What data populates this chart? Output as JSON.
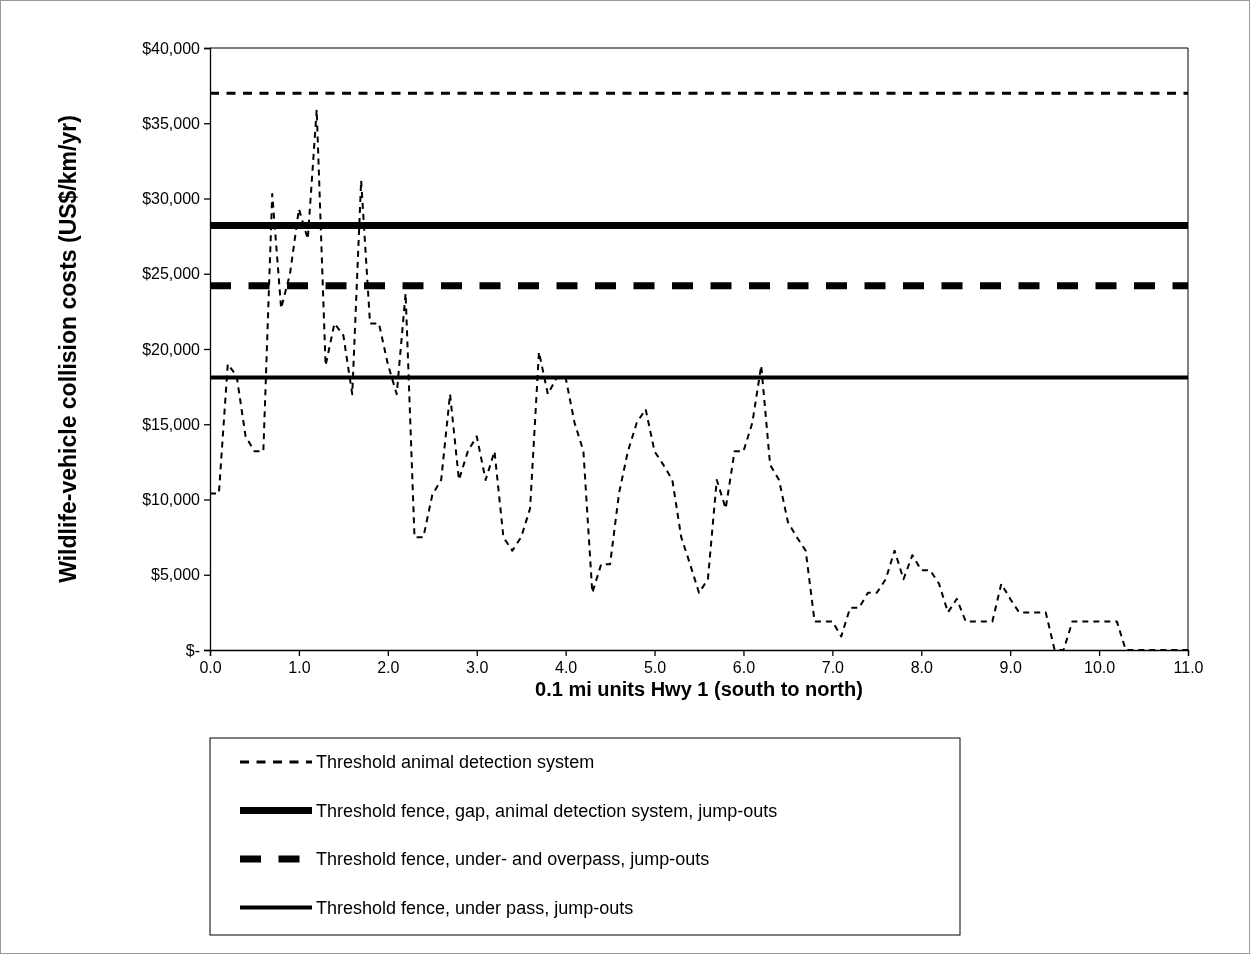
{
  "chart_data": {
    "type": "line",
    "xlabel": "0.1 mi units Hwy 1 (south to north)",
    "ylabel": "Wildlife-vehicle collision costs (US$/km/yr)",
    "x": [
      0.0,
      0.1,
      0.2,
      0.3,
      0.4,
      0.5,
      0.6,
      0.7,
      0.8,
      0.9,
      1.0,
      1.1,
      1.2,
      1.3,
      1.4,
      1.5,
      1.6,
      1.7,
      1.8,
      1.9,
      2.0,
      2.1,
      2.2,
      2.3,
      2.4,
      2.5,
      2.6,
      2.7,
      2.8,
      2.9,
      3.0,
      3.1,
      3.2,
      3.3,
      3.4,
      3.5,
      3.6,
      3.7,
      3.8,
      3.9,
      4.0,
      4.1,
      4.2,
      4.3,
      4.4,
      4.5,
      4.6,
      4.7,
      4.8,
      4.9,
      5.0,
      5.1,
      5.2,
      5.3,
      5.4,
      5.5,
      5.6,
      5.7,
      5.8,
      5.9,
      6.0,
      6.1,
      6.2,
      6.3,
      6.4,
      6.5,
      6.6,
      6.7,
      6.8,
      6.9,
      7.0,
      7.1,
      7.2,
      7.3,
      7.4,
      7.5,
      7.6,
      7.7,
      7.8,
      7.9,
      8.0,
      8.1,
      8.2,
      8.3,
      8.4,
      8.5,
      8.6,
      8.7,
      8.8,
      8.9,
      9.0,
      9.1,
      9.2,
      9.3,
      9.4,
      9.5,
      9.6,
      9.7,
      9.8,
      9.9,
      10.0,
      10.1,
      10.2,
      10.3,
      10.4,
      10.5,
      10.6,
      10.7,
      10.8,
      10.9,
      11.0
    ],
    "series": [
      {
        "color": "#000000",
        "values": [
          10400,
          10400,
          19000,
          18200,
          14200,
          13200,
          13200,
          30300,
          22700,
          25000,
          29300,
          27300,
          35900,
          18900,
          21700,
          20900,
          17000,
          31200,
          21700,
          21700,
          19000,
          17000,
          23700,
          7500,
          7500,
          10300,
          11300,
          17000,
          11300,
          13200,
          14200,
          11300,
          13200,
          7500,
          6600,
          7500,
          9400,
          19800,
          17000,
          18100,
          18100,
          15100,
          13200,
          3800,
          5700,
          5700,
          10400,
          13200,
          15100,
          16000,
          13200,
          12300,
          11300,
          7500,
          5700,
          3800,
          4700,
          11300,
          9400,
          13200,
          13200,
          15100,
          18900,
          12300,
          11300,
          8500,
          7500,
          6600,
          1900,
          1900,
          1900,
          900,
          2800,
          2800,
          3800,
          3800,
          4700,
          6600,
          4700,
          6300,
          5300,
          5300,
          4400,
          2500,
          3400,
          1900,
          1900,
          1900,
          1900,
          4400,
          3400,
          2500,
          2500,
          2500,
          2500,
          0,
          0,
          1900,
          1900,
          1900,
          1900,
          1900,
          1900,
          0,
          0,
          0,
          0,
          0,
          0,
          0,
          0
        ]
      }
    ],
    "xlim": [
      0,
      11
    ],
    "xticks": [
      {
        "value": 0,
        "label": "0.0"
      },
      {
        "value": 1,
        "label": "1.0"
      },
      {
        "value": 2,
        "label": "2.0"
      },
      {
        "value": 3,
        "label": "3.0"
      },
      {
        "value": 4,
        "label": "4.0"
      },
      {
        "value": 5,
        "label": "5.0"
      },
      {
        "value": 6,
        "label": "6.0"
      },
      {
        "value": 7,
        "label": "7.0"
      },
      {
        "value": 8,
        "label": "8.0"
      },
      {
        "value": 9,
        "label": "9.0"
      },
      {
        "value": 10,
        "label": "10.0"
      },
      {
        "value": 11,
        "label": "11.0"
      }
    ],
    "ylim": [
      0,
      40000
    ],
    "yticks": [
      {
        "value": 0,
        "label": "$-"
      },
      {
        "value": 5000,
        "label": "$5,000"
      },
      {
        "value": 10000,
        "label": "$10,000"
      },
      {
        "value": 15000,
        "label": "$15,000"
      },
      {
        "value": 20000,
        "label": "$20,000"
      },
      {
        "value": 25000,
        "label": "$25,000"
      },
      {
        "value": 30000,
        "label": "$30,000"
      },
      {
        "value": 35000,
        "label": "$35,000"
      },
      {
        "value": 40000,
        "label": "$40,000"
      }
    ],
    "ref_lines": [
      {
        "axis": "y",
        "value": 37000,
        "label": "Threshold animal detection system",
        "color": "#000000",
        "line_style": "dashed"
      },
      {
        "axis": "y",
        "value": 28200,
        "label": "Threshold fence, gap, animal detection system, jump-outs",
        "color": "#000000",
        "line_style": "solid"
      },
      {
        "axis": "y",
        "value": 24200,
        "label": "Threshold fence, under- and overpass, jump-outs",
        "color": "#000000",
        "line_style": "dashed"
      },
      {
        "axis": "y",
        "value": 18100,
        "label": "Threshold fence, under pass, jump-outs",
        "color": "#000000",
        "line_style": "solid"
      }
    ],
    "legend": "bottom",
    "line_style": "dashed",
    "marker": "none",
    "grid": false
  }
}
